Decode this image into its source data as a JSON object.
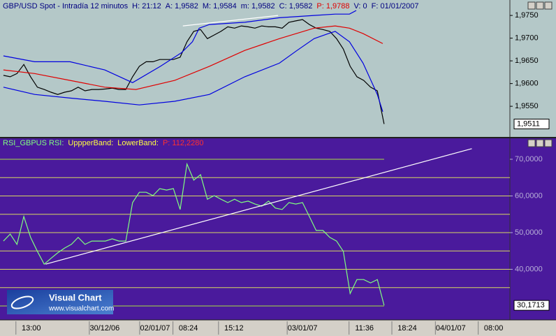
{
  "chart_data": [
    {
      "type": "line",
      "header_items": [
        {
          "text": "GBP/USD Spot - Intradía 12 minutos",
          "color": "#000080"
        },
        {
          "text": "H: 21:12",
          "color": "#000080"
        },
        {
          "text": "A: 1,9582",
          "color": "#000080"
        },
        {
          "text": "M: 1,9584",
          "color": "#000080"
        },
        {
          "text": "m: 1,9582",
          "color": "#000080"
        },
        {
          "text": "C: 1,9582",
          "color": "#000080"
        },
        {
          "text": "P: 1,9788",
          "color": "#e00000"
        },
        {
          "text": "V: 0",
          "color": "#000080"
        },
        {
          "text": "F: 01/01/2007",
          "color": "#000080"
        }
      ],
      "xlim": [
        -0.5,
        74.5
      ],
      "xticks": [
        {
          "value": 4.1,
          "label": "13:00"
        },
        {
          "value": 14.9,
          "label": "30/12/06"
        },
        {
          "value": 22.3,
          "label": "02/01/07"
        },
        {
          "value": 27.2,
          "label": "08:24"
        },
        {
          "value": 33.9,
          "label": "15:12"
        },
        {
          "value": 44,
          "label": "03/01/07"
        },
        {
          "value": 53.1,
          "label": "11:36"
        },
        {
          "value": 59.4,
          "label": "18:24"
        },
        {
          "value": 65.8,
          "label": "04/01/07"
        },
        {
          "value": 72.1,
          "label": "08:00"
        }
      ],
      "ylim": [
        1.9481,
        1.9784
      ],
      "yticks": [
        {
          "value": 1.975,
          "label": "1,9750"
        },
        {
          "value": 1.97,
          "label": "1,9700"
        },
        {
          "value": 1.965,
          "label": "1,9650"
        },
        {
          "value": 1.96,
          "label": "1,9600"
        },
        {
          "value": 1.955,
          "label": "1,9550"
        }
      ],
      "series": [
        {
          "color": "#000000",
          "values": [
            1.9618,
            1.9615,
            1.9622,
            1.9642,
            1.9615,
            1.9592,
            1.9587,
            1.9581,
            1.9576,
            1.9581,
            1.9584,
            1.9592,
            1.9584,
            1.9587,
            1.9587,
            1.9588,
            1.959,
            1.9587,
            1.9587,
            1.9615,
            1.9638,
            1.9648,
            1.9648,
            1.9653,
            1.9653,
            1.9653,
            1.9658,
            1.9692,
            1.9715,
            1.9719,
            1.9699,
            1.9707,
            1.9715,
            1.9725,
            1.9722,
            1.9727,
            1.9725,
            1.9722,
            1.9727,
            1.9725,
            1.9725,
            1.9722,
            1.9735,
            1.9738,
            1.9741,
            1.973,
            1.9722,
            1.9719,
            1.9715,
            1.9699,
            1.9676,
            1.9638,
            1.9615,
            1.9607,
            1.9592,
            1.9584,
            1.9511
          ],
          "value_labels": [
            null,
            null,
            null,
            null,
            null,
            null,
            null,
            null,
            null,
            null,
            null,
            null,
            null,
            null,
            null,
            null,
            null,
            null,
            null,
            null,
            null,
            null,
            null,
            null,
            null,
            null,
            null,
            null,
            null,
            null,
            null,
            null,
            null,
            null,
            null,
            null,
            null,
            null,
            null,
            null,
            null,
            null,
            null,
            null,
            null,
            null,
            null,
            null,
            null,
            null,
            null,
            null,
            null,
            null,
            null,
            null,
            "1,9511"
          ]
        },
        {
          "color": "#e00000",
          "x": [
            0,
            4.6,
            9.8,
            14.9,
            19.5,
            25.2,
            30.3,
            35.5,
            40.6,
            45.7,
            48.8,
            50.9,
            52.9,
            55.8
          ],
          "values": [
            1.963,
            1.9622,
            1.9607,
            1.9592,
            1.9587,
            1.9607,
            1.9638,
            1.9673,
            1.9699,
            1.9722,
            1.9727,
            1.9722,
            1.971,
            1.9688
          ]
        },
        {
          "color": "#0000e0",
          "x": [
            0,
            4.6,
            9.8,
            14.9,
            19,
            23.1,
            26.2,
            27.8,
            28.8,
            30.3,
            35.5,
            40.6,
            45.7,
            48.8,
            50.9,
            51.9
          ],
          "values": [
            1.9661,
            1.9648,
            1.9648,
            1.963,
            1.9602,
            1.9638,
            1.9668,
            1.9692,
            1.9722,
            1.973,
            1.9735,
            1.9745,
            1.975,
            1.9753,
            1.9753,
            1.9761
          ]
        },
        {
          "color": "#0000e0",
          "x": [
            0,
            4.6,
            9.8,
            14.9,
            20,
            25.2,
            30.3,
            35.5,
            40.6,
            43.2,
            45.7,
            47.8,
            48.8,
            50.9,
            52.9,
            55,
            55.8
          ],
          "values": [
            1.9592,
            1.9576,
            1.9568,
            1.9561,
            1.9553,
            1.9561,
            1.9576,
            1.9615,
            1.9645,
            1.9673,
            1.9699,
            1.971,
            1.9715,
            1.9692,
            1.9645,
            1.9576,
            1.9538
          ]
        },
        {
          "color": "#ffffff",
          "x": [
            26.4,
            40.4
          ],
          "values": [
            1.9727,
            1.975
          ]
        }
      ]
    },
    {
      "type": "line",
      "header_items": [
        {
          "text": "RSI_GBPUS RSI:",
          "color": "#80ff80"
        },
        {
          "text": "UppperBand:",
          "color": "#ffff40"
        },
        {
          "text": "LowerBand:",
          "color": "#ffff40"
        },
        {
          "text": "P: 112,2280",
          "color": "#ff3030"
        }
      ],
      "xlim": [
        -0.5,
        74.5
      ],
      "ylim": [
        26.2,
        75.9
      ],
      "yticks": [
        {
          "value": 70,
          "label": "70,0000"
        },
        {
          "value": 60,
          "label": "60,0000"
        },
        {
          "value": 50,
          "label": "50,0000"
        },
        {
          "value": 40,
          "label": "40,0000"
        }
      ],
      "levels": [
        65,
        60,
        55,
        50,
        45,
        40,
        35
      ],
      "level_color": "#d8d860",
      "band_levels": [
        70,
        30
      ],
      "band_color": "#a8e040",
      "series": [
        {
          "color": "#80ff80",
          "values": [
            47.7,
            49.6,
            46.8,
            54.4,
            48.7,
            44.9,
            41.4,
            43.0,
            44.5,
            45.8,
            46.8,
            48.7,
            46.8,
            47.7,
            47.7,
            47.7,
            48.3,
            47.7,
            47.7,
            58.2,
            61.0,
            61.0,
            60.1,
            62.0,
            61.6,
            62.0,
            56.3,
            68.7,
            64.3,
            65.8,
            59.1,
            60.1,
            59.1,
            58.2,
            59.1,
            58.2,
            58.6,
            57.8,
            57.2,
            58.6,
            56.7,
            56.3,
            58.2,
            57.8,
            58.2,
            54.4,
            50.6,
            50.6,
            48.7,
            47.7,
            44.9,
            33.4,
            37.2,
            37.2,
            36.3,
            37.2,
            30.1713
          ],
          "value_labels": [
            null,
            null,
            null,
            null,
            null,
            null,
            null,
            null,
            null,
            null,
            null,
            null,
            null,
            null,
            null,
            null,
            null,
            null,
            null,
            null,
            null,
            null,
            null,
            null,
            null,
            null,
            null,
            null,
            null,
            null,
            null,
            null,
            null,
            null,
            null,
            null,
            null,
            null,
            null,
            null,
            null,
            null,
            null,
            null,
            null,
            null,
            null,
            null,
            null,
            null,
            null,
            null,
            null,
            null,
            null,
            null,
            "30,1713"
          ]
        },
        {
          "color": "#ffffff",
          "x": [
            6.2,
            68.9
          ],
          "values": [
            41.4,
            72.9
          ]
        }
      ]
    }
  ],
  "watermark": {
    "title": "Visual Chart",
    "url": "www.visualchart.com"
  }
}
